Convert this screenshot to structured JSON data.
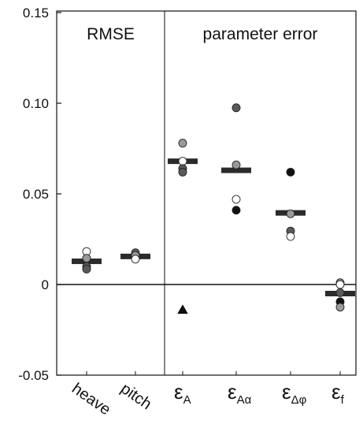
{
  "chart_data": {
    "type": "scatter",
    "y_ticks": [
      "0.15",
      "0.10",
      "0.05",
      "0",
      "-0.05"
    ],
    "y_tick_values": [
      0.15,
      0.1,
      0.05,
      0,
      -0.05
    ],
    "ylim": [
      -0.05,
      0.15
    ],
    "grid": false,
    "panels": [
      {
        "label": "RMSE",
        "categories": [
          "heave",
          "pitch"
        ]
      },
      {
        "label": "parameter error",
        "categories": [
          "εA",
          "εAα",
          "εΔφ",
          "εf"
        ]
      }
    ],
    "categories": [
      {
        "key": "heave",
        "base": "heave",
        "sub": "",
        "panel": 0
      },
      {
        "key": "pitch",
        "base": "pitch",
        "sub": "",
        "panel": 0
      },
      {
        "key": "eA",
        "base": "ε",
        "sub": "A",
        "panel": 1
      },
      {
        "key": "eAa",
        "base": "ε",
        "sub": "Aα",
        "panel": 1
      },
      {
        "key": "eDphi",
        "base": "ε",
        "sub": "Δφ",
        "panel": 1
      },
      {
        "key": "ef",
        "base": "ε",
        "sub": "f",
        "panel": 1
      }
    ],
    "marker_colors": {
      "white": "#ffffff",
      "gray": "#9a9a9a",
      "dark": "#5a5a5a",
      "black": "#111111"
    },
    "mean_bar_color": "#2b2b2b",
    "series": [
      {
        "category": "heave",
        "mean": 0.0128,
        "points": [
          {
            "y": 0.0182,
            "color": "white",
            "shape": "circle"
          },
          {
            "y": 0.0145,
            "color": "gray",
            "shape": "circle"
          },
          {
            "y": 0.01,
            "color": "dark",
            "shape": "circle"
          },
          {
            "y": 0.0085,
            "color": "dark",
            "shape": "circle"
          }
        ]
      },
      {
        "category": "pitch",
        "mean": 0.0155,
        "points": [
          {
            "y": 0.0175,
            "color": "dark",
            "shape": "circle"
          },
          {
            "y": 0.016,
            "color": "gray",
            "shape": "circle"
          },
          {
            "y": 0.014,
            "color": "white",
            "shape": "circle"
          }
        ]
      },
      {
        "category": "eA",
        "mean": 0.068,
        "points": [
          {
            "y": 0.078,
            "color": "gray",
            "shape": "circle"
          },
          {
            "y": 0.068,
            "color": "white",
            "shape": "circle"
          },
          {
            "y": 0.064,
            "color": "dark",
            "shape": "circle"
          },
          {
            "y": 0.062,
            "color": "dark",
            "shape": "circle"
          },
          {
            "y": -0.014,
            "color": "black",
            "shape": "triangle"
          }
        ]
      },
      {
        "category": "eAa",
        "mean": 0.063,
        "points": [
          {
            "y": 0.0975,
            "color": "dark",
            "shape": "circle"
          },
          {
            "y": 0.066,
            "color": "gray",
            "shape": "circle"
          },
          {
            "y": 0.047,
            "color": "white",
            "shape": "circle"
          },
          {
            "y": 0.041,
            "color": "black",
            "shape": "circle"
          }
        ]
      },
      {
        "category": "eDphi",
        "mean": 0.0395,
        "points": [
          {
            "y": 0.062,
            "color": "black",
            "shape": "circle"
          },
          {
            "y": 0.039,
            "color": "gray",
            "shape": "circle"
          },
          {
            "y": 0.0295,
            "color": "dark",
            "shape": "circle"
          },
          {
            "y": 0.0265,
            "color": "white",
            "shape": "circle"
          }
        ]
      },
      {
        "category": "ef",
        "mean": -0.005,
        "points": [
          {
            "y": 0.001,
            "color": "gray",
            "shape": "circle"
          },
          {
            "y": 0.0,
            "color": "white",
            "shape": "circle"
          },
          {
            "y": -0.0045,
            "color": "dark",
            "shape": "circle"
          },
          {
            "y": -0.0095,
            "color": "black",
            "shape": "circle"
          },
          {
            "y": -0.0125,
            "color": "gray",
            "shape": "circle"
          }
        ]
      }
    ]
  }
}
